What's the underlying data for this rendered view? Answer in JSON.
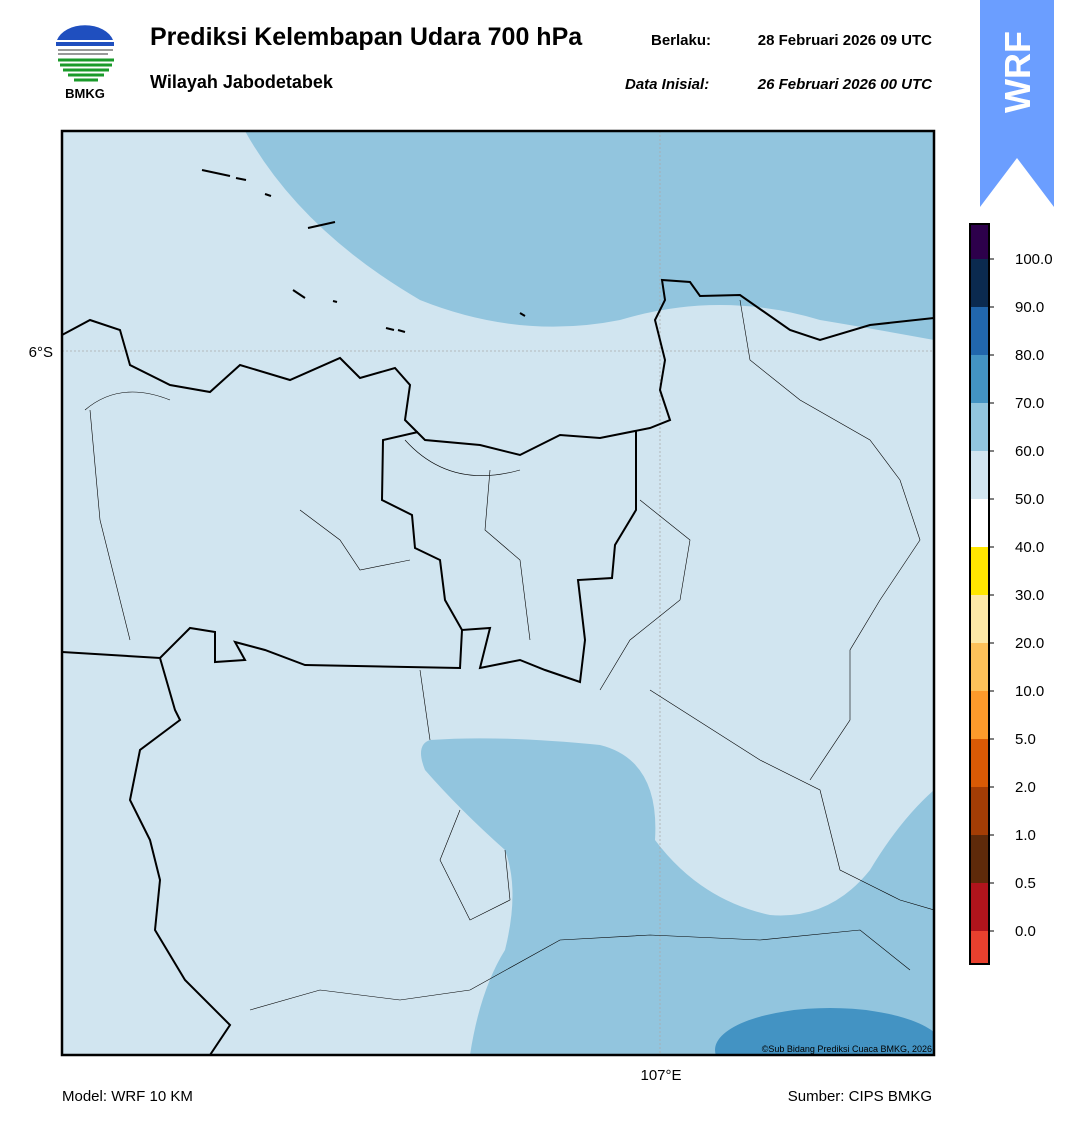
{
  "header": {
    "logo_text": "BMKG",
    "title": "Prediksi Kelembapan Udara 700 hPa",
    "subtitle": "Wilayah Jabodetabek",
    "valid_label": "Berlaku:",
    "valid_time": "28 Februari 2026 09 UTC",
    "init_label": "Data Inisial:",
    "init_time": "26 Februari 2026 00 UTC"
  },
  "badge": "WRF",
  "map": {
    "lat_label": "6°S",
    "lon_label": "107°E",
    "credit": "©Sub Bidang Prediksi Cuaca BMKG, 2026"
  },
  "colorbar": {
    "labels": [
      "100.0",
      "90.0",
      "80.0",
      "70.0",
      "60.0",
      "50.0",
      "40.0",
      "30.0",
      "20.0",
      "10.0",
      "5.0",
      "2.0",
      "1.0",
      "0.5",
      "0.0"
    ],
    "colors": [
      "#2d004b",
      "#0b2a4f",
      "#2166ac",
      "#4393c3",
      "#92c5de",
      "#d1e5f0",
      "#ffffff",
      "#ffe600",
      "#fde8a6",
      "#fdc15a",
      "#fd9a2b",
      "#d95a05",
      "#a33d05",
      "#5e2a0a",
      "#b0141c",
      "#e8402e"
    ]
  },
  "footer": {
    "model": "Model: WRF 10 KM",
    "source": "Sumber: CIPS BMKG"
  }
}
